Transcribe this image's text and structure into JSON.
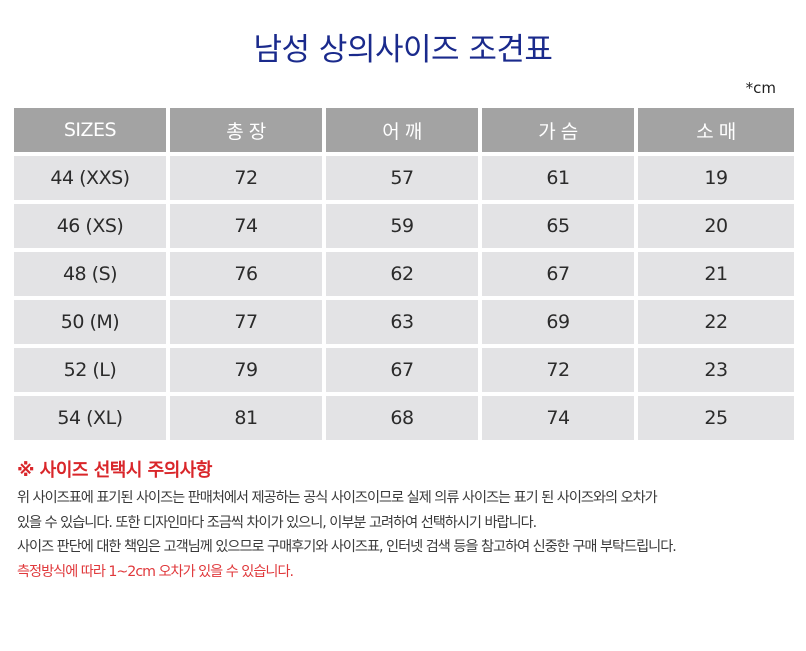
{
  "title": "남성 상의사이즈 조견표",
  "unit": "*cm",
  "table": {
    "headers": [
      "SIZES",
      "총 장",
      "어 깨",
      "가 슴",
      "소 매"
    ],
    "rows": [
      [
        "44 (XXS)",
        "72",
        "57",
        "61",
        "19"
      ],
      [
        "46 (XS)",
        "74",
        "59",
        "65",
        "20"
      ],
      [
        "48 (S)",
        "76",
        "62",
        "67",
        "21"
      ],
      [
        "50 (M)",
        "77",
        "63",
        "69",
        "22"
      ],
      [
        "52 (L)",
        "79",
        "67",
        "72",
        "23"
      ],
      [
        "54 (XL)",
        "81",
        "68",
        "74",
        "25"
      ]
    ]
  },
  "notes": {
    "heading": "※ 사이즈 선택시 주의사항",
    "lines": [
      "위 사이즈표에 표기된 사이즈는 판매처에서 제공하는 공식 사이즈이므로 실제 의류 사이즈는 표기 된 사이즈와의 오차가",
      "있을 수 있습니다. 또한 디자인마다 조금씩 차이가 있으니, 이부분 고려하여 선택하시기 바랍니다.",
      "사이즈 판단에 대한 책임은 고객님께 있으므로 구매후기와 사이즈표, 인터넷 검색 등을 참고하여 신중한 구매 부탁드립니다.",
      "측정방식에 따라 1~2cm 오차가 있을 수 있습니다."
    ]
  },
  "colors": {
    "title": "#1a2a8c",
    "header_bg": "#a3a3a3",
    "cell_bg": "#e3e3e5",
    "warning": "#d9262a"
  }
}
